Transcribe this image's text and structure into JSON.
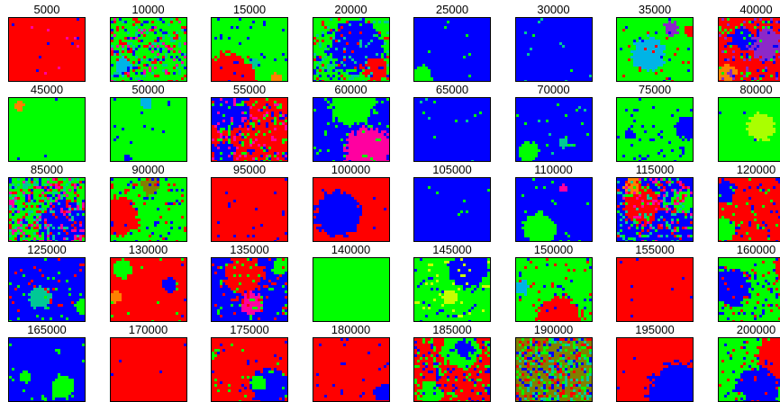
{
  "title": "",
  "palette": {
    "red": "#ff0000",
    "green": "#00ff00",
    "blue": "#0000ff",
    "cyan": "#00b4e6",
    "magenta": "#ff00a0",
    "yellow": "#c8ff00",
    "orange": "#ff8000",
    "teal": "#00c896",
    "purple": "#8c28c8",
    "olive": "#808000",
    "lime": "#aaff00"
  },
  "panels": [
    {
      "label": "5000",
      "base": "red",
      "noise": 0.02,
      "noise_colors": [
        "magenta",
        "blue"
      ],
      "blobs": []
    },
    {
      "label": "10000",
      "base": "green",
      "noise": 0.35,
      "noise_colors": [
        "red",
        "blue",
        "teal",
        "magenta"
      ],
      "blobs": [
        [
          "cyan",
          0.15,
          0.75,
          0.12
        ]
      ]
    },
    {
      "label": "15000",
      "base": "green",
      "noise": 0.04,
      "noise_colors": [
        "blue"
      ],
      "blobs": [
        [
          "red",
          0.2,
          0.95,
          0.35
        ],
        [
          "teal",
          0.55,
          0.7,
          0.06
        ],
        [
          "orange",
          0.85,
          0.95,
          0.08
        ]
      ]
    },
    {
      "label": "20000",
      "base": "green",
      "noise": 0.25,
      "noise_colors": [
        "blue",
        "red",
        "teal"
      ],
      "blobs": [
        [
          "blue",
          0.55,
          0.45,
          0.35
        ],
        [
          "red",
          0.8,
          0.8,
          0.15
        ]
      ]
    },
    {
      "label": "25000",
      "base": "blue",
      "noise": 0.02,
      "noise_colors": [
        "green"
      ],
      "blobs": [
        [
          "green",
          0.08,
          0.9,
          0.14
        ]
      ]
    },
    {
      "label": "30000",
      "base": "blue",
      "noise": 0.03,
      "noise_colors": [
        "green",
        "teal"
      ],
      "blobs": []
    },
    {
      "label": "35000",
      "base": "green",
      "noise": 0.05,
      "noise_colors": [
        "blue",
        "red"
      ],
      "blobs": [
        [
          "cyan",
          0.4,
          0.55,
          0.22
        ],
        [
          "purple",
          0.7,
          0.15,
          0.1
        ],
        [
          "red",
          0.95,
          0.2,
          0.08
        ]
      ]
    },
    {
      "label": "40000",
      "base": "red",
      "noise": 0.2,
      "noise_colors": [
        "blue",
        "purple",
        "green"
      ],
      "blobs": [
        [
          "purple",
          0.6,
          0.4,
          0.2
        ],
        [
          "blue",
          0.3,
          0.3,
          0.15
        ],
        [
          "orange",
          0.1,
          0.85,
          0.12
        ]
      ]
    },
    {
      "label": "45000",
      "base": "green",
      "noise": 0.01,
      "noise_colors": [
        "blue"
      ],
      "blobs": [
        [
          "orange",
          0.12,
          0.1,
          0.06
        ]
      ]
    },
    {
      "label": "50000",
      "base": "green",
      "noise": 0.02,
      "noise_colors": [
        "blue"
      ],
      "blobs": [
        [
          "cyan",
          0.45,
          0.05,
          0.08
        ],
        [
          "blue",
          0.2,
          0.95,
          0.05
        ]
      ]
    },
    {
      "label": "55000",
      "base": "red",
      "noise": 0.3,
      "noise_colors": [
        "blue",
        "green",
        "magenta"
      ],
      "blobs": [
        [
          "blue",
          0.2,
          0.2,
          0.25
        ],
        [
          "blue",
          0.15,
          0.85,
          0.15
        ]
      ]
    },
    {
      "label": "60000",
      "base": "blue",
      "noise": 0.05,
      "noise_colors": [
        "green"
      ],
      "blobs": [
        [
          "green",
          0.5,
          0.05,
          0.3
        ],
        [
          "magenta",
          0.7,
          0.8,
          0.3
        ]
      ]
    },
    {
      "label": "65000",
      "base": "blue",
      "noise": 0.02,
      "noise_colors": [
        "green",
        "teal"
      ],
      "blobs": []
    },
    {
      "label": "70000",
      "base": "blue",
      "noise": 0.04,
      "noise_colors": [
        "green",
        "teal"
      ],
      "blobs": [
        [
          "green",
          0.15,
          0.85,
          0.14
        ],
        [
          "teal",
          0.6,
          0.7,
          0.06
        ]
      ]
    },
    {
      "label": "75000",
      "base": "green",
      "noise": 0.06,
      "noise_colors": [
        "blue"
      ],
      "blobs": [
        [
          "blue",
          0.15,
          0.55,
          0.06
        ],
        [
          "blue",
          0.9,
          0.45,
          0.15
        ]
      ]
    },
    {
      "label": "80000",
      "base": "green",
      "noise": 0.01,
      "noise_colors": [
        "blue"
      ],
      "blobs": [
        [
          "lime",
          0.55,
          0.45,
          0.18
        ]
      ]
    },
    {
      "label": "85000",
      "base": "green",
      "noise": 0.45,
      "noise_colors": [
        "red",
        "blue",
        "magenta",
        "teal"
      ],
      "blobs": [
        [
          "blue",
          0.7,
          0.7,
          0.3
        ]
      ]
    },
    {
      "label": "90000",
      "base": "green",
      "noise": 0.15,
      "noise_colors": [
        "red",
        "blue"
      ],
      "blobs": [
        [
          "red",
          0.1,
          0.6,
          0.25
        ],
        [
          "olive",
          0.5,
          0.1,
          0.12
        ]
      ]
    },
    {
      "label": "95000",
      "base": "red",
      "noise": 0.03,
      "noise_colors": [
        "blue"
      ],
      "blobs": []
    },
    {
      "label": "100000",
      "base": "red",
      "noise": 0.01,
      "noise_colors": [
        "blue"
      ],
      "blobs": [
        [
          "blue",
          0.3,
          0.55,
          0.3
        ]
      ]
    },
    {
      "label": "105000",
      "base": "blue",
      "noise": 0.01,
      "noise_colors": [
        "green"
      ],
      "blobs": []
    },
    {
      "label": "110000",
      "base": "blue",
      "noise": 0.03,
      "noise_colors": [
        "green"
      ],
      "blobs": [
        [
          "green",
          0.3,
          0.8,
          0.22
        ],
        [
          "magenta",
          0.62,
          0.15,
          0.05
        ]
      ]
    },
    {
      "label": "115000",
      "base": "blue",
      "noise": 0.35,
      "noise_colors": [
        "red",
        "green",
        "teal",
        "magenta"
      ],
      "blobs": [
        [
          "red",
          0.3,
          0.4,
          0.25
        ],
        [
          "green",
          0.85,
          0.35,
          0.15
        ],
        [
          "orange",
          0.2,
          0.1,
          0.12
        ]
      ]
    },
    {
      "label": "120000",
      "base": "red",
      "noise": 0.1,
      "noise_colors": [
        "blue",
        "green"
      ],
      "blobs": [
        [
          "blue",
          0.05,
          0.2,
          0.15
        ],
        [
          "green",
          0.05,
          0.8,
          0.15
        ]
      ]
    },
    {
      "label": "125000",
      "base": "blue",
      "noise": 0.08,
      "noise_colors": [
        "green",
        "red"
      ],
      "blobs": [
        [
          "teal",
          0.4,
          0.6,
          0.15
        ],
        [
          "green",
          0.95,
          0.75,
          0.1
        ]
      ]
    },
    {
      "label": "130000",
      "base": "red",
      "noise": 0.03,
      "noise_colors": [
        "blue",
        "green"
      ],
      "blobs": [
        [
          "green",
          0.15,
          0.15,
          0.12
        ],
        [
          "blue",
          0.75,
          0.4,
          0.1
        ],
        [
          "orange",
          0.05,
          0.6,
          0.08
        ]
      ]
    },
    {
      "label": "135000",
      "base": "blue",
      "noise": 0.15,
      "noise_colors": [
        "red",
        "green"
      ],
      "blobs": [
        [
          "red",
          0.4,
          0.25,
          0.25
        ],
        [
          "magenta",
          0.5,
          0.7,
          0.15
        ],
        [
          "green",
          0.9,
          0.1,
          0.12
        ]
      ]
    },
    {
      "label": "140000",
      "base": "green",
      "noise": 0.0,
      "noise_colors": [],
      "blobs": []
    },
    {
      "label": "145000",
      "base": "green",
      "noise": 0.1,
      "noise_colors": [
        "blue",
        "yellow"
      ],
      "blobs": [
        [
          "blue",
          0.7,
          0.15,
          0.25
        ],
        [
          "yellow",
          0.45,
          0.6,
          0.1
        ]
      ]
    },
    {
      "label": "150000",
      "base": "green",
      "noise": 0.06,
      "noise_colors": [
        "red",
        "blue"
      ],
      "blobs": [
        [
          "red",
          0.55,
          0.95,
          0.3
        ],
        [
          "cyan",
          0.05,
          0.45,
          0.1
        ]
      ]
    },
    {
      "label": "155000",
      "base": "red",
      "noise": 0.01,
      "noise_colors": [
        "blue"
      ],
      "blobs": []
    },
    {
      "label": "160000",
      "base": "green",
      "noise": 0.15,
      "noise_colors": [
        "blue",
        "red"
      ],
      "blobs": [
        [
          "blue",
          0.15,
          0.45,
          0.25
        ],
        [
          "red",
          0.9,
          0.1,
          0.2
        ]
      ]
    },
    {
      "label": "165000",
      "base": "blue",
      "noise": 0.03,
      "noise_colors": [
        "green"
      ],
      "blobs": [
        [
          "green",
          0.7,
          0.75,
          0.16
        ],
        [
          "green",
          0.2,
          0.6,
          0.08
        ]
      ]
    },
    {
      "label": "170000",
      "base": "red",
      "noise": 0.01,
      "noise_colors": [
        "blue"
      ],
      "blobs": []
    },
    {
      "label": "175000",
      "base": "red",
      "noise": 0.05,
      "noise_colors": [
        "blue",
        "green"
      ],
      "blobs": [
        [
          "blue",
          0.75,
          0.75,
          0.25
        ],
        [
          "green",
          0.6,
          0.7,
          0.1
        ]
      ]
    },
    {
      "label": "180000",
      "base": "red",
      "noise": 0.03,
      "noise_colors": [
        "blue"
      ],
      "blobs": [
        [
          "blue",
          0.9,
          0.85,
          0.12
        ]
      ]
    },
    {
      "label": "185000",
      "base": "red",
      "noise": 0.25,
      "noise_colors": [
        "green",
        "blue"
      ],
      "blobs": [
        [
          "green",
          0.6,
          0.15,
          0.25
        ],
        [
          "blue",
          0.65,
          0.15,
          0.12
        ],
        [
          "green",
          0.2,
          0.85,
          0.15
        ]
      ]
    },
    {
      "label": "190000",
      "base": "olive",
      "noise": 0.5,
      "noise_colors": [
        "green",
        "blue",
        "teal",
        "red"
      ],
      "blobs": []
    },
    {
      "label": "195000",
      "base": "red",
      "noise": 0.02,
      "noise_colors": [
        "blue"
      ],
      "blobs": [
        [
          "blue",
          0.85,
          0.9,
          0.45
        ]
      ]
    },
    {
      "label": "200000",
      "base": "green",
      "noise": 0.1,
      "noise_colors": [
        "blue",
        "red"
      ],
      "blobs": [
        [
          "red",
          0.8,
          0.3,
          0.3
        ],
        [
          "blue",
          0.5,
          0.8,
          0.3
        ],
        [
          "green",
          0.2,
          0.95,
          0.12
        ]
      ]
    }
  ]
}
